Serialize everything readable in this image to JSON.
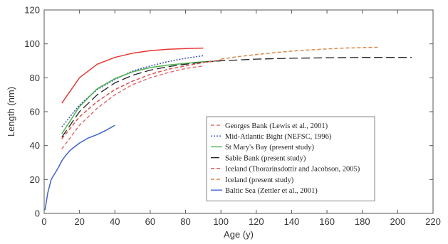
{
  "chart_data": {
    "type": "line",
    "xlabel": "Age (y)",
    "ylabel": "Length (nm)",
    "xlim": [
      0,
      220
    ],
    "ylim": [
      0,
      120
    ],
    "xticks": [
      0,
      20,
      40,
      60,
      80,
      100,
      120,
      140,
      160,
      180,
      200,
      220
    ],
    "yticks": [
      0,
      20,
      40,
      60,
      80,
      100,
      120
    ],
    "grid": false,
    "legend_position": "right",
    "series": [
      {
        "name": "Georges Bank (Lewis et al., 2001)",
        "color": "#e07070",
        "dash": "dashed",
        "x": [
          10,
          20,
          30,
          40,
          50,
          60,
          70,
          80,
          90
        ],
        "y": [
          38,
          52,
          62,
          70,
          76,
          80,
          83,
          85.5,
          87
        ]
      },
      {
        "name": "Mid-Atlantic Bight (NEFSC, 1996)",
        "color": "#3a52b8",
        "dash": "dotted",
        "x": [
          10,
          20,
          30,
          40,
          50,
          60,
          70,
          80,
          90
        ],
        "y": [
          51,
          64,
          73,
          79,
          84,
          87,
          89.5,
          91.5,
          93
        ]
      },
      {
        "name": "St Mary's Bay (present study)",
        "color": "#4caf50",
        "dash": "solid",
        "x": [
          10,
          20,
          30,
          40,
          50,
          60,
          70,
          80,
          90,
          100
        ],
        "y": [
          47,
          63,
          73.5,
          79.5,
          83.5,
          86,
          87.5,
          88.5,
          89.5,
          90
        ]
      },
      {
        "name": "Sable Bank (present study)",
        "color": "#222222",
        "dash": "longdash",
        "x": [
          10,
          20,
          30,
          40,
          50,
          60,
          70,
          80,
          90,
          100,
          120,
          140,
          160,
          180,
          200,
          208
        ],
        "y": [
          45,
          60,
          70,
          77,
          81.5,
          84.5,
          86.5,
          88,
          89.2,
          90,
          91,
          91.5,
          91.8,
          92,
          92,
          92
        ]
      },
      {
        "name": "Iceland (Thorarinsdottir and Jacobson, 2005)",
        "color": "#d9534f",
        "dash": "dashed",
        "x": [
          10,
          20,
          30,
          40,
          50,
          60,
          70,
          80,
          90,
          100
        ],
        "y": [
          44,
          57,
          66,
          73,
          78,
          82,
          85,
          87,
          89,
          90.5
        ]
      },
      {
        "name": "Iceland (present study)",
        "color": "#d9894a",
        "dash": "dashed",
        "x": [
          100,
          110,
          120,
          130,
          140,
          150,
          160,
          170,
          180,
          190
        ],
        "y": [
          91,
          92.5,
          93.7,
          94.8,
          95.7,
          96.4,
          97,
          97.5,
          97.8,
          98
        ]
      },
      {
        "name": "Baltic Sea (Zettler et al., 2001)",
        "color": "#3f63c9",
        "dash": "solid",
        "x": [
          0.5,
          2,
          4,
          6,
          8,
          10,
          12,
          15,
          20,
          25,
          30,
          35,
          40
        ],
        "y": [
          2,
          12,
          20,
          23.5,
          27,
          31,
          34,
          37.5,
          41.5,
          44.5,
          46.5,
          49,
          52
        ]
      },
      {
        "name": "",
        "color": "#e53935",
        "dash": "solid",
        "x": [
          10,
          20,
          30,
          40,
          50,
          60,
          70,
          80,
          90
        ],
        "y": [
          65,
          80,
          88,
          92,
          94.5,
          96,
          96.8,
          97.2,
          97.5
        ]
      }
    ]
  }
}
